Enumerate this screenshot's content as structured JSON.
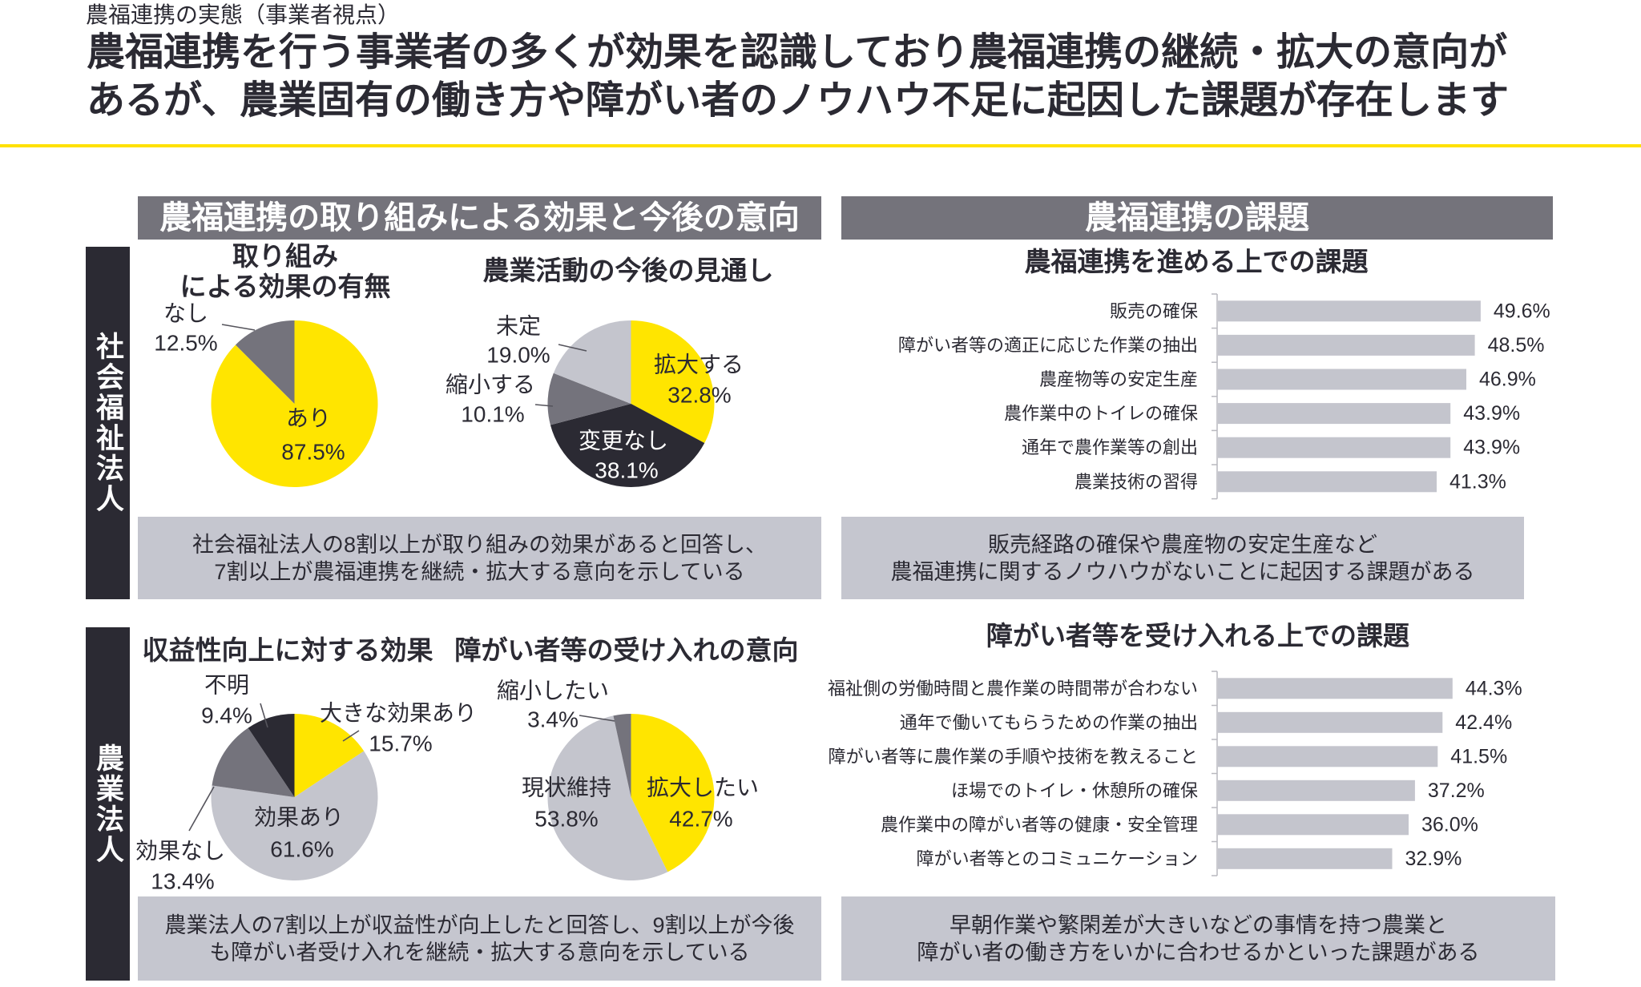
{
  "header": {
    "kicker": "農福連携の実態（事業者視点）",
    "headline_lines": [
      "農福連携を行う事業者の多くが効果を認識しており農福連携の継続・拡大の意向が",
      "あるが、農業固有の働き方や障がい者のノウハウ不足に起因した課題が存在します"
    ]
  },
  "sections": {
    "effects_title": "農福連携の取り組みによる効果と今後の意向",
    "issues_title": "農福連携の課題"
  },
  "rows": [
    {
      "label": "社会福祉法人",
      "effects_summary_lines": [
        "社会福祉法人の8割以上が取り組みの効果があると回答し、",
        "7割以上が農福連携を継続・拡大する意向を示している"
      ],
      "issues_summary_lines": [
        "販売経路の確保や農産物の安定生産など",
        "農福連携に関するノウハウがないことに起因する課題がある"
      ]
    },
    {
      "label": "農業法人",
      "effects_summary_lines": [
        "農業法人の7割以上が収益性が向上したと回答し、9割以上が今後",
        "も障がい者受け入れを継続・拡大する意向を示している"
      ],
      "issues_summary_lines": [
        "早朝作業や繁閑差が大きいなどの事情を持つ農業と",
        "障がい者の働き方をいかに合わせるかといった課題がある"
      ]
    }
  ],
  "colors": {
    "accent_yellow": "#ffe500",
    "dark": "#2b2a33",
    "mid_gray": "#74737c",
    "light_gray": "#c4c5cd",
    "header_gray": "#74737b",
    "panel_gray": "#c5c6cf",
    "bar_gray": "#c4c5cd",
    "rule_yellow": "#ffe100"
  },
  "chart_data": [
    {
      "type": "pie",
      "title_lines": [
        "取り組み",
        "による効果の有無"
      ],
      "categories": [
        "あり",
        "なし"
      ],
      "values": [
        87.5,
        12.5
      ],
      "value_labels": [
        "87.5%",
        "12.5%"
      ],
      "colors": [
        "#ffe500",
        "#74737c"
      ]
    },
    {
      "type": "pie",
      "title_lines": [
        "農業活動の今後の見通し"
      ],
      "categories": [
        "拡大する",
        "変更なし",
        "縮小する",
        "未定"
      ],
      "values": [
        32.8,
        38.1,
        10.1,
        19.0
      ],
      "value_labels": [
        "32.8%",
        "38.1%",
        "10.1%",
        "19.0%"
      ],
      "colors": [
        "#ffe500",
        "#2b2a33",
        "#74737c",
        "#c4c5cd"
      ]
    },
    {
      "type": "pie",
      "title_lines": [
        "収益性向上に対する効果"
      ],
      "categories": [
        "大きな効果あり",
        "効果あり",
        "効果なし",
        "不明"
      ],
      "values": [
        15.7,
        61.6,
        13.4,
        9.4
      ],
      "value_labels": [
        "15.7%",
        "61.6%",
        "13.4%",
        "9.4%"
      ],
      "colors": [
        "#ffe500",
        "#c4c5cd",
        "#74737c",
        "#2b2a33"
      ]
    },
    {
      "type": "pie",
      "title_lines": [
        "障がい者等の受け入れの意向"
      ],
      "categories": [
        "拡大したい",
        "現状維持",
        "縮小したい"
      ],
      "values": [
        42.7,
        53.8,
        3.4
      ],
      "value_labels": [
        "42.7%",
        "53.8%",
        "3.4%"
      ],
      "colors": [
        "#ffe500",
        "#c4c5cd",
        "#74737c"
      ]
    },
    {
      "type": "bar",
      "title_lines": [
        "農福連携を進める上での課題"
      ],
      "categories": [
        "販売の確保",
        "障がい者等の適正に応じた作業の抽出",
        "農産物等の安定生産",
        "農作業中のトイレの確保",
        "通年で農作業等の創出",
        "農業技術の習得"
      ],
      "values": [
        49.6,
        48.5,
        46.9,
        43.9,
        43.9,
        41.3
      ],
      "value_labels": [
        "49.6%",
        "48.5%",
        "46.9%",
        "43.9%",
        "43.9%",
        "41.3%"
      ],
      "colors": [
        "#c4c5cd"
      ]
    },
    {
      "type": "bar",
      "title_lines": [
        "障がい者等を受け入れる上での課題"
      ],
      "categories": [
        "福祉側の労働時間と農作業の時間帯が合わない",
        "通年で働いてもらうための作業の抽出",
        "障がい者等に農作業の手順や技術を教えること",
        "ほ場でのトイレ・休憩所の確保",
        "農作業中の障がい者等の健康・安全管理",
        "障がい者等とのコミュニケーション"
      ],
      "values": [
        44.3,
        42.4,
        41.5,
        37.2,
        36.0,
        32.9
      ],
      "value_labels": [
        "44.3%",
        "42.4%",
        "41.5%",
        "37.2%",
        "36.0%",
        "32.9%"
      ],
      "colors": [
        "#c4c5cd"
      ]
    }
  ]
}
